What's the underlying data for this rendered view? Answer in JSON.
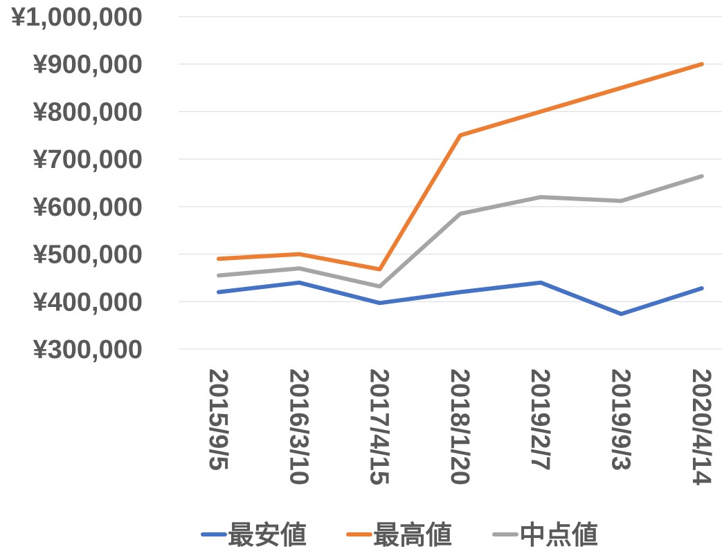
{
  "chart_data": {
    "type": "line",
    "categories": [
      "2015/9/5",
      "2016/3/10",
      "2017/4/15",
      "2018/1/20",
      "2019/2/7",
      "2019/9/3",
      "2020/4/14"
    ],
    "series": [
      {
        "name": "最安値",
        "color": "#4472c4",
        "values": [
          420000,
          440000,
          397000,
          420000,
          440000,
          374000,
          428000
        ]
      },
      {
        "name": "最高値",
        "color": "#ed7d31",
        "values": [
          490000,
          500000,
          468000,
          750000,
          800000,
          850000,
          900000
        ]
      },
      {
        "name": "中点値",
        "color": "#a5a5a5",
        "values": [
          455000,
          470000,
          432000,
          585000,
          620000,
          612000,
          664000
        ]
      }
    ],
    "ylim": [
      300000,
      1000000
    ],
    "yticks": [
      1000000,
      900000,
      800000,
      700000,
      600000,
      500000,
      400000,
      300000
    ],
    "ytick_labels": [
      "¥1,000,000",
      "¥900,000",
      "¥800,000",
      "¥700,000",
      "¥600,000",
      "¥500,000",
      "¥400,000",
      "¥300,000"
    ],
    "grid": true,
    "legend_position": "bottom",
    "title": "",
    "xlabel": "",
    "ylabel": ""
  }
}
